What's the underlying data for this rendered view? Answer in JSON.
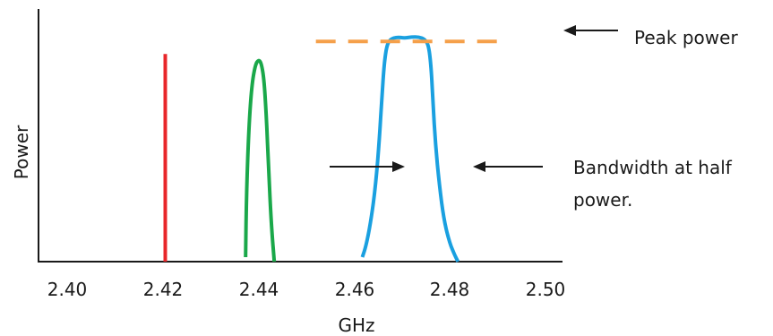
{
  "chart_data": {
    "type": "line",
    "xlabel": "GHz",
    "ylabel": "Power",
    "x_ticks": [
      "2.40",
      "2.42",
      "2.44",
      "2.46",
      "2.48",
      "2.50"
    ],
    "xlim": [
      2.4,
      2.5
    ],
    "grid": false,
    "series": [
      {
        "color": "#e8262a",
        "shape": "vertical line",
        "x": [
          2.4205,
          2.4205
        ],
        "y": [
          0.0,
          0.92
        ]
      },
      {
        "color": "#1aa84a",
        "x": [
          2.4373,
          2.4375,
          2.438,
          2.4386,
          2.4393,
          2.44,
          2.4406,
          2.4412,
          2.4417,
          2.4421,
          2.4425,
          2.4429,
          2.4433
        ],
        "y": [
          0.02,
          0.32,
          0.6,
          0.78,
          0.87,
          0.895,
          0.88,
          0.8,
          0.62,
          0.42,
          0.24,
          0.1,
          0.0
        ]
      },
      {
        "color": "#1aa0e0",
        "x": [
          2.4617,
          2.4625,
          2.4635,
          2.4645,
          2.4653,
          2.4658,
          2.4663,
          2.4668,
          2.4675,
          2.469,
          2.4705,
          2.472,
          2.4735,
          2.4748,
          2.4756,
          2.4761,
          2.4765,
          2.477,
          2.4778,
          2.4788,
          2.48,
          2.481,
          2.4817
        ],
        "y": [
          0.02,
          0.07,
          0.18,
          0.34,
          0.55,
          0.73,
          0.88,
          0.955,
          0.985,
          0.995,
          0.99,
          0.995,
          0.995,
          0.985,
          0.955,
          0.86,
          0.7,
          0.52,
          0.34,
          0.18,
          0.08,
          0.03,
          0.0
        ]
      }
    ],
    "annotations": {
      "peak_power_line": {
        "color": "#f5a04a",
        "x": [
          2.452,
          2.492
        ],
        "y": 0.975
      },
      "peak_label": "Peak power",
      "bandwidth_label_1": "Bandwidth at half",
      "bandwidth_label_2": "power.",
      "bandwidth_arrows_y": 0.5
    }
  }
}
